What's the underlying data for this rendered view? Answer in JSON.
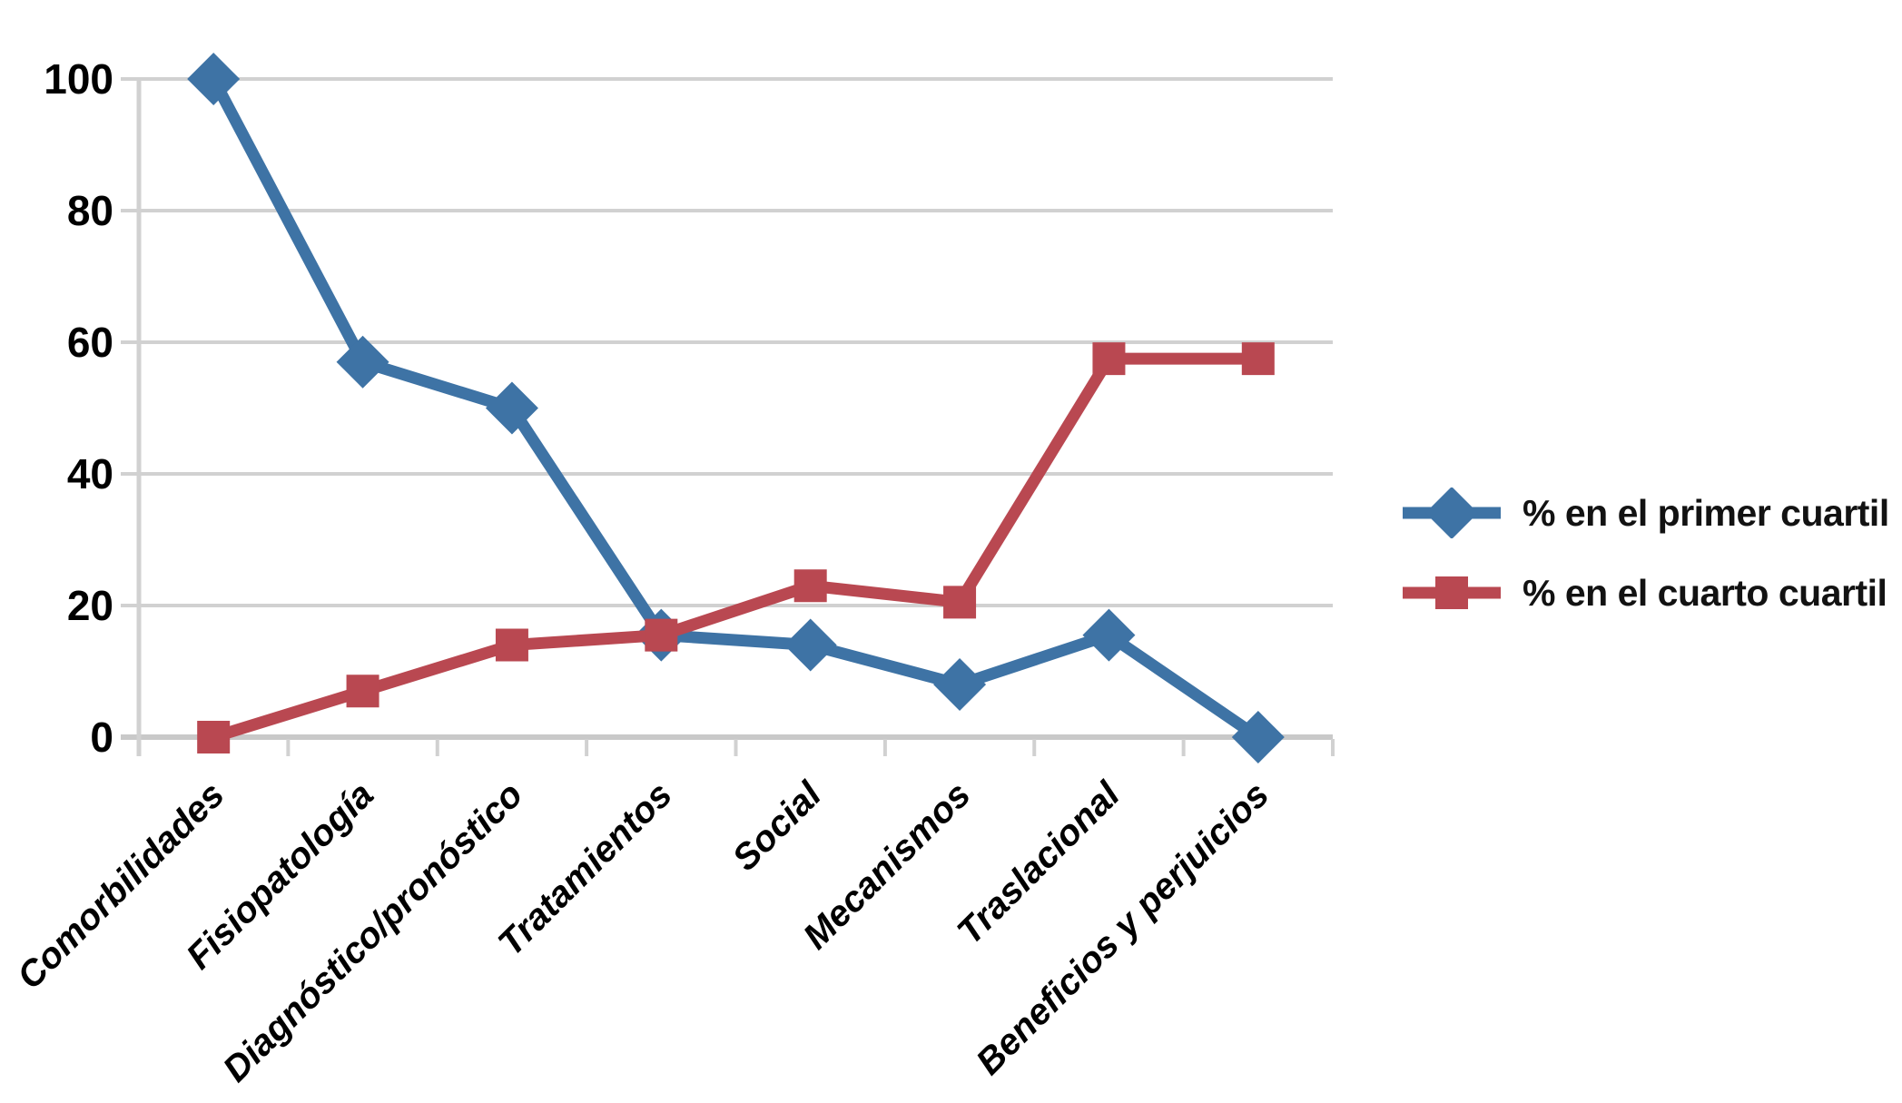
{
  "chart_data": {
    "type": "line",
    "categories": [
      "Comorbilidades",
      "Fisiopatología",
      "Diagnóstico/pronóstico",
      "Tratamientos",
      "Social",
      "Mecanismos",
      "Traslacional",
      "Beneficios y perjuicios"
    ],
    "series": [
      {
        "name": "% en el primer cuartil",
        "marker": "diamond",
        "color": "#3E73A5",
        "values": [
          100,
          57,
          50,
          15.5,
          14,
          8,
          15.5,
          0
        ]
      },
      {
        "name": "% en el cuarto cuartil",
        "marker": "square",
        "color": "#B94851",
        "values": [
          0,
          7,
          14,
          15.5,
          23,
          20.5,
          57.5,
          57.5
        ]
      }
    ],
    "title": "",
    "xlabel": "",
    "ylabel": "",
    "ylim": [
      0,
      100
    ],
    "ytick_step": 20,
    "ytick_labels": [
      "0",
      "20",
      "40",
      "60",
      "80",
      "100"
    ],
    "grid": true,
    "legend_position": "right",
    "gridline_color": "#D1D1D1",
    "axis_color": "#C9C9C9",
    "text_color": "#000000"
  }
}
